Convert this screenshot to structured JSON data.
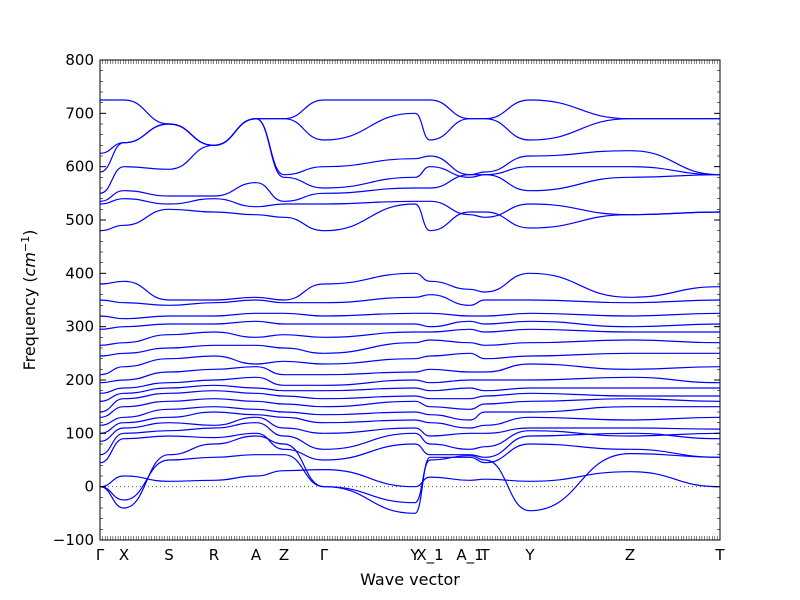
{
  "chart_data": {
    "type": "line",
    "title": "",
    "xlabel": "Wave vector",
    "ylabel": "Frequency ($cm^{-1}$)",
    "ylabel_main": "Frequency (",
    "ylabel_unit": "cm",
    "ylabel_exp": "−1",
    "ylabel_close": ")",
    "ylim": [
      -100,
      800
    ],
    "yticks": [
      -100,
      0,
      100,
      200,
      300,
      400,
      500,
      600,
      700,
      800
    ],
    "x_path_points": [
      "Γ",
      "X",
      "S",
      "R",
      "A",
      "Z",
      "Γ",
      "Y",
      "X_1",
      "A_1",
      "T",
      "Y",
      "Z",
      "T"
    ],
    "x_path_positions": [
      0.0,
      0.24,
      0.69,
      1.14,
      1.56,
      1.84,
      2.24,
      3.15,
      3.3,
      3.7,
      3.85,
      4.3,
      5.3,
      6.2
    ],
    "zero_line": true,
    "series_color": "#0000ff",
    "bands": [
      [
        0,
        20,
        10,
        12,
        20,
        30,
        32,
        0,
        18,
        12,
        14,
        10,
        28,
        0
      ],
      [
        0,
        -25,
        50,
        55,
        60,
        60,
        0,
        -30,
        50,
        58,
        50,
        -45,
        62,
        55
      ],
      [
        0,
        -40,
        60,
        80,
        95,
        80,
        0,
        -50,
        55,
        55,
        45,
        80,
        70,
        55
      ],
      [
        45,
        90,
        95,
        92,
        100,
        70,
        50,
        80,
        60,
        60,
        55,
        95,
        100,
        90
      ],
      [
        60,
        100,
        105,
        110,
        120,
        95,
        70,
        100,
        80,
        70,
        75,
        105,
        95,
        100
      ],
      [
        85,
        110,
        120,
        115,
        130,
        110,
        100,
        110,
        95,
        100,
        100,
        110,
        110,
        108
      ],
      [
        100,
        120,
        130,
        140,
        135,
        130,
        120,
        125,
        120,
        110,
        115,
        130,
        125,
        130
      ],
      [
        115,
        130,
        145,
        150,
        145,
        140,
        135,
        140,
        135,
        125,
        140,
        140,
        150,
        150
      ],
      [
        130,
        150,
        160,
        165,
        160,
        155,
        150,
        160,
        150,
        145,
        155,
        160,
        165,
        160
      ],
      [
        140,
        165,
        175,
        180,
        175,
        170,
        165,
        170,
        165,
        165,
        170,
        175,
        170,
        170
      ],
      [
        160,
        175,
        185,
        190,
        185,
        180,
        180,
        185,
        180,
        185,
        180,
        185,
        185,
        185
      ],
      [
        175,
        185,
        195,
        200,
        205,
        190,
        190,
        200,
        195,
        200,
        200,
        200,
        205,
        195
      ],
      [
        195,
        200,
        215,
        220,
        225,
        210,
        210,
        215,
        220,
        215,
        215,
        230,
        220,
        225
      ],
      [
        210,
        225,
        240,
        245,
        230,
        235,
        230,
        240,
        245,
        250,
        240,
        245,
        250,
        250
      ],
      [
        245,
        250,
        260,
        265,
        265,
        260,
        250,
        270,
        275,
        270,
        265,
        270,
        275,
        270
      ],
      [
        265,
        270,
        285,
        290,
        280,
        285,
        280,
        290,
        290,
        295,
        290,
        295,
        290,
        290
      ],
      [
        295,
        300,
        305,
        305,
        310,
        305,
        305,
        305,
        300,
        310,
        305,
        310,
        300,
        305
      ],
      [
        320,
        315,
        320,
        320,
        325,
        325,
        320,
        325,
        325,
        320,
        320,
        325,
        320,
        325
      ],
      [
        350,
        345,
        340,
        345,
        350,
        345,
        345,
        355,
        360,
        340,
        350,
        350,
        345,
        350
      ],
      [
        380,
        385,
        350,
        350,
        355,
        350,
        380,
        400,
        385,
        370,
        365,
        400,
        355,
        375
      ],
      [
        480,
        490,
        520,
        515,
        510,
        505,
        480,
        530,
        480,
        515,
        515,
        485,
        510,
        515
      ],
      [
        530,
        540,
        530,
        540,
        525,
        530,
        530,
        535,
        535,
        510,
        505,
        530,
        510,
        515
      ],
      [
        535,
        555,
        545,
        545,
        570,
        535,
        550,
        560,
        560,
        585,
        585,
        555,
        580,
        585
      ],
      [
        550,
        600,
        595,
        640,
        690,
        580,
        560,
        580,
        600,
        580,
        585,
        600,
        600,
        585
      ],
      [
        590,
        645,
        680,
        640,
        690,
        585,
        600,
        615,
        620,
        585,
        590,
        620,
        630,
        585
      ],
      [
        625,
        645,
        680,
        640,
        690,
        690,
        650,
        700,
        650,
        690,
        690,
        650,
        690,
        690
      ],
      [
        725,
        725,
        680,
        640,
        690,
        690,
        725,
        725,
        725,
        690,
        690,
        725,
        690,
        690
      ]
    ]
  }
}
